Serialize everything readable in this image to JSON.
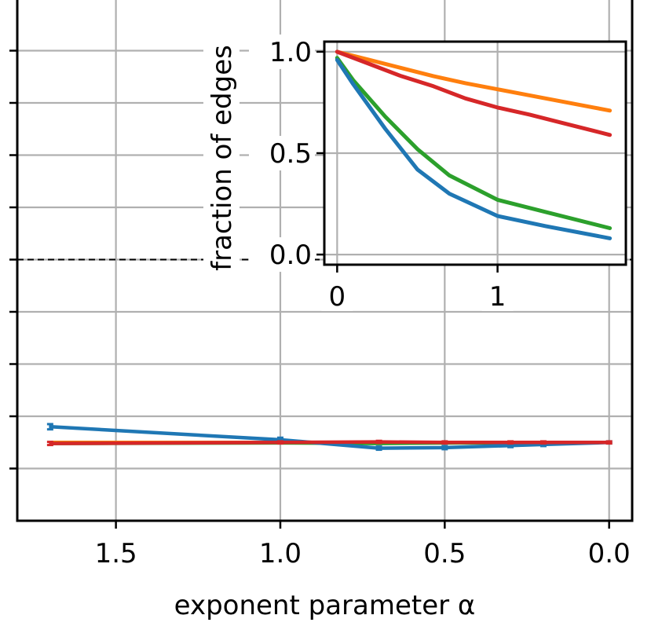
{
  "chart_data": [
    {
      "type": "line",
      "xlabel": "exponent parameter α",
      "ylabel": "",
      "x_inverted": true,
      "xlim": [
        1.8,
        -0.07
      ],
      "ylim": [
        -0.05,
        0.05
      ],
      "x_ticks": [
        1.5,
        1.0,
        0.5,
        0.0
      ],
      "x_tick_labels": [
        "1.5",
        "1.0",
        "0.5",
        "0.0"
      ],
      "y_ticks": [
        -0.04,
        -0.03,
        -0.02,
        -0.01,
        0.0,
        0.01,
        0.02,
        0.03,
        0.04
      ],
      "y_tick_labels": [
        "",
        "",
        "",
        "",
        "",
        "",
        "",
        "",
        ""
      ],
      "grid": true,
      "reference_line": {
        "y": 0.0,
        "style": "dashed",
        "color": "#000000"
      },
      "series": [
        {
          "color": "#ff7f0e",
          "x": [
            1.7,
            1.0,
            0.7,
            0.5,
            0.3,
            0.2,
            0.0
          ],
          "y": [
            -0.035,
            -0.035,
            -0.035,
            -0.0351,
            -0.035,
            -0.035,
            -0.035
          ]
        },
        {
          "color": "#2ca02c",
          "x": [
            1.7,
            1.0,
            0.7,
            0.5,
            0.3,
            0.2,
            0.0
          ],
          "y": [
            -0.0352,
            -0.0351,
            -0.0352,
            -0.0351,
            -0.0351,
            -0.035,
            -0.035
          ]
        },
        {
          "color": "#1f77b4",
          "x": [
            1.7,
            1.0,
            0.7,
            0.5,
            0.3,
            0.2,
            0.0
          ],
          "y": [
            -0.032,
            -0.0345,
            -0.0361,
            -0.036,
            -0.0356,
            -0.0354,
            -0.035
          ],
          "err": [
            0.0005,
            0.0004,
            0.0003,
            0.0003,
            0.0003,
            0.0003,
            0.0002
          ]
        },
        {
          "color": "#d62728",
          "x": [
            1.7,
            1.0,
            0.7,
            0.5,
            0.3,
            0.2,
            0.0
          ],
          "y": [
            -0.0352,
            -0.035,
            -0.0349,
            -0.035,
            -0.035,
            -0.035,
            -0.035
          ],
          "err": [
            0.0003,
            0.0002,
            0.0002,
            0.0002,
            0.0002,
            0.0002,
            0.0002
          ]
        }
      ]
    },
    {
      "type": "line",
      "role": "inset",
      "xlabel": "",
      "ylabel": "fraction of edges",
      "xlim": [
        -0.08,
        1.8
      ],
      "ylim": [
        -0.05,
        1.05
      ],
      "x_ticks": [
        0,
        1
      ],
      "x_tick_labels": [
        "0",
        "1"
      ],
      "y_ticks": [
        0.0,
        0.5,
        1.0
      ],
      "y_tick_labels": [
        "0.0",
        "0.5",
        "1.0"
      ],
      "grid": true,
      "series": [
        {
          "color": "#ff7f0e",
          "x": [
            0,
            0.2,
            0.4,
            0.6,
            0.8,
            1.0,
            1.2,
            1.4,
            1.6,
            1.7
          ],
          "y": [
            1.0,
            0.96,
            0.92,
            0.88,
            0.845,
            0.815,
            0.785,
            0.755,
            0.725,
            0.71
          ]
        },
        {
          "color": "#d62728",
          "x": [
            0,
            0.2,
            0.4,
            0.6,
            0.8,
            1.0,
            1.2,
            1.4,
            1.6,
            1.7
          ],
          "y": [
            1.0,
            0.94,
            0.88,
            0.83,
            0.77,
            0.725,
            0.69,
            0.65,
            0.61,
            0.59
          ]
        },
        {
          "color": "#2ca02c",
          "x": [
            0,
            0.1,
            0.3,
            0.5,
            0.7,
            1.0,
            1.3,
            1.7
          ],
          "y": [
            0.97,
            0.86,
            0.68,
            0.52,
            0.39,
            0.27,
            0.21,
            0.13
          ]
        },
        {
          "color": "#1f77b4",
          "x": [
            0,
            0.1,
            0.3,
            0.5,
            0.7,
            1.0,
            1.3,
            1.7
          ],
          "y": [
            0.96,
            0.84,
            0.62,
            0.42,
            0.3,
            0.19,
            0.14,
            0.08
          ]
        }
      ]
    }
  ]
}
